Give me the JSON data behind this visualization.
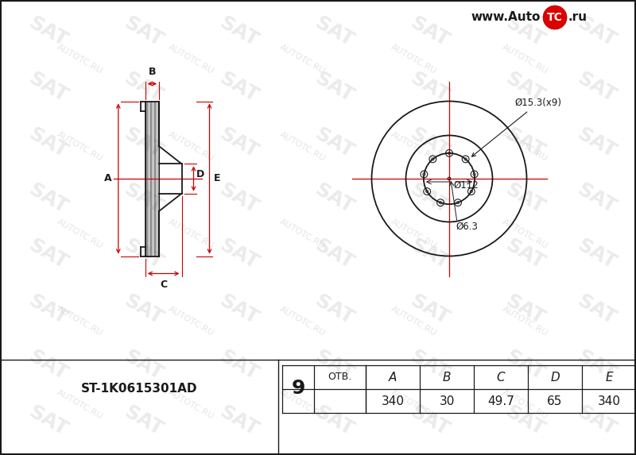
{
  "bg_color": "#ffffff",
  "line_color": "#1a1a1a",
  "red_color": "#cc0000",
  "part_number": "ST-1K0615301AD",
  "holes": 9,
  "label_otv": "ОТВ.",
  "annotations": {
    "d153": "Ø15.3(x9)",
    "d112": "Ø112",
    "d63": "Ø6.3"
  },
  "website": "www.Auto",
  "website2": "TC",
  "website3": ".ru",
  "table_cols": [
    "A",
    "B",
    "C",
    "D",
    "E"
  ],
  "table_vals": [
    "340",
    "30",
    "49.7",
    "65",
    "340"
  ],
  "dim_labels": [
    "A",
    "B",
    "C",
    "D",
    "E"
  ],
  "sat_wm_color": "#d8d8d8",
  "autotc_wm_color": "#d0d0d0"
}
